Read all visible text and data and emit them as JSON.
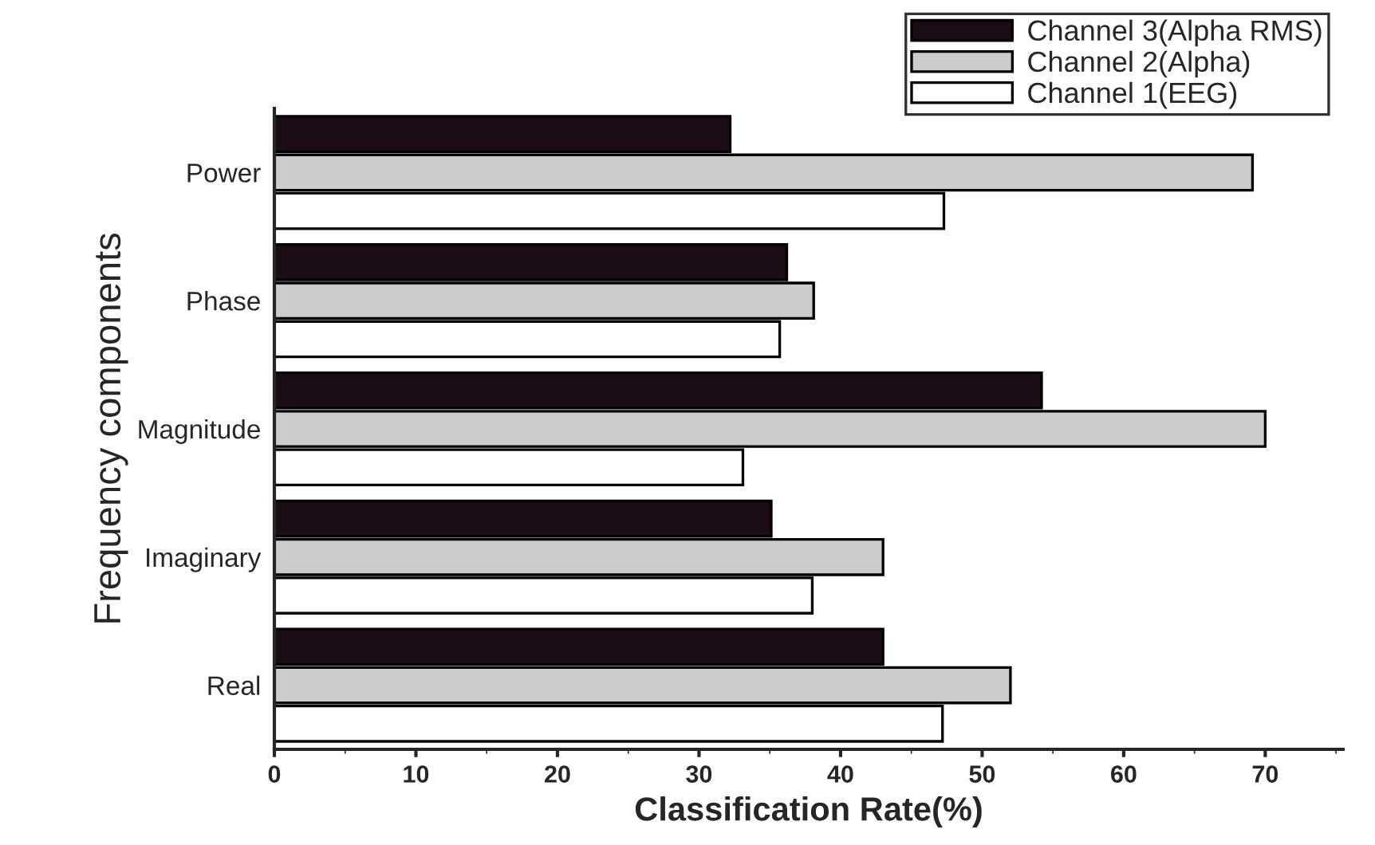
{
  "chart_data": {
    "type": "bar",
    "orientation": "horizontal",
    "xlabel": "Classification Rate(%)",
    "ylabel": "Frequency components",
    "categories": [
      "Power",
      "Phase",
      "Magnitude",
      "Imaginary",
      "Real"
    ],
    "series": [
      {
        "name": "Channel 3(Alpha RMS)",
        "color": "#1c0c16",
        "values": [
          32.2,
          36.2,
          54.2,
          35.1,
          43.0
        ]
      },
      {
        "name": "Channel 2(Alpha)",
        "color": "#cccccc",
        "values": [
          69.1,
          38.1,
          70.0,
          43.0,
          52.0
        ]
      },
      {
        "name": "Channel 1(EEG)",
        "color": "#ffffff",
        "values": [
          47.3,
          35.7,
          33.1,
          38.0,
          47.2
        ]
      }
    ],
    "xlim": [
      0,
      75.5
    ],
    "xticks": [
      0,
      10,
      20,
      30,
      40,
      50,
      60,
      70
    ],
    "grid": false,
    "legend": "top right"
  }
}
